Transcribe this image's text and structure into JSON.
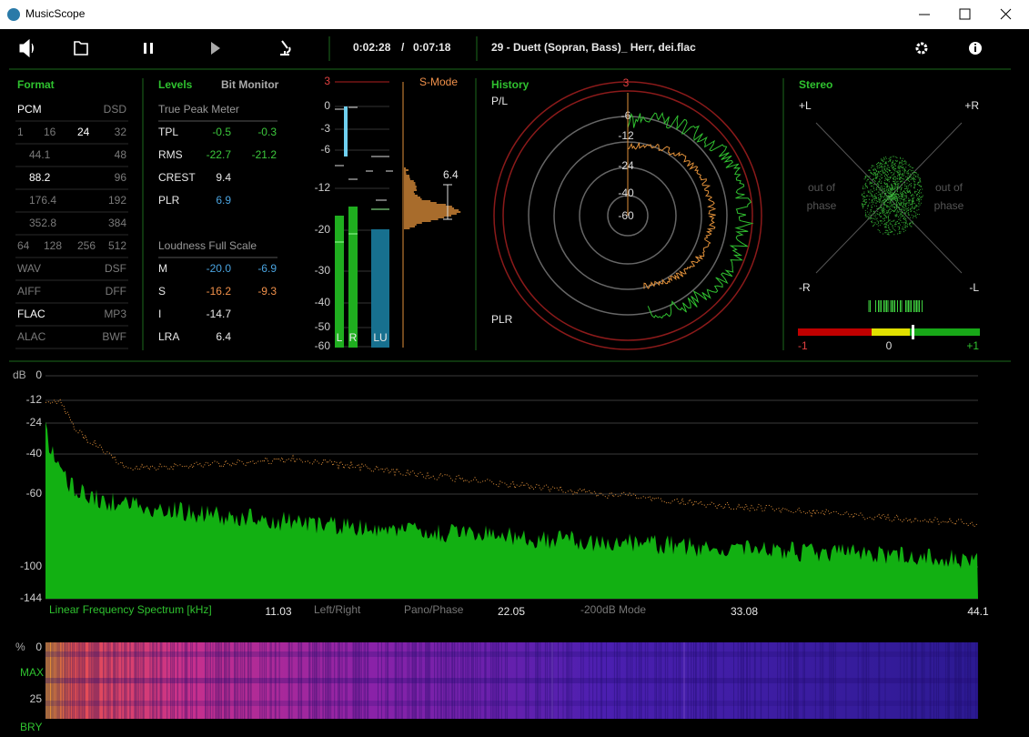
{
  "window": {
    "title": "MusicScope"
  },
  "toolbar": {
    "time_current": "0:02:28",
    "time_separator": "/",
    "time_total": "0:07:18",
    "track": "29 - Duett (Sopran, Bass)_ Herr, dei.flac"
  },
  "format": {
    "title": "Format",
    "rows": [
      [
        {
          "label": "PCM",
          "active": true
        },
        {
          "label": "DSD",
          "active": false
        }
      ],
      [
        {
          "label": "1",
          "active": false
        },
        {
          "label": "16",
          "active": false
        },
        {
          "label": "24",
          "active": true
        },
        {
          "label": "32",
          "active": false
        }
      ],
      [
        {
          "label": "44.1",
          "active": false
        },
        {
          "label": "48",
          "active": false
        }
      ],
      [
        {
          "label": "88.2",
          "active": true
        },
        {
          "label": "96",
          "active": false
        }
      ],
      [
        {
          "label": "176.4",
          "active": false
        },
        {
          "label": "192",
          "active": false
        }
      ],
      [
        {
          "label": "352.8",
          "active": false
        },
        {
          "label": "384",
          "active": false
        }
      ],
      [
        {
          "label": "64",
          "active": false
        },
        {
          "label": "128",
          "active": false
        },
        {
          "label": "256",
          "active": false
        },
        {
          "label": "512",
          "active": false
        }
      ],
      [
        {
          "label": "WAV",
          "active": false
        },
        {
          "label": "DSF",
          "active": false
        }
      ],
      [
        {
          "label": "AIFF",
          "active": false
        },
        {
          "label": "DFF",
          "active": false
        }
      ],
      [
        {
          "label": "FLAC",
          "active": true
        },
        {
          "label": "MP3",
          "active": false
        }
      ],
      [
        {
          "label": "ALAC",
          "active": false
        },
        {
          "label": "BWF",
          "active": false
        }
      ]
    ]
  },
  "levels": {
    "tabs": [
      {
        "label": "Levels",
        "active": true
      },
      {
        "label": "Bit Monitor",
        "active": false
      }
    ],
    "true_peak": {
      "title": "True Peak Meter",
      "rows": [
        {
          "label": "TPL",
          "values": [
            "-0.5",
            "-0.3"
          ],
          "color": "#3cc83c"
        },
        {
          "label": "RMS",
          "values": [
            "-22.7",
            "-21.2"
          ],
          "color": "#3cc83c"
        },
        {
          "label": "CREST",
          "values": [
            "9.4"
          ],
          "color": "#e8e8e8"
        },
        {
          "label": "PLR",
          "values": [
            "6.9"
          ],
          "color": "#4aa3df"
        }
      ]
    },
    "loudness": {
      "title": "Loudness Full Scale",
      "rows": [
        {
          "label": "M",
          "values": [
            "-20.0",
            "-6.9"
          ],
          "color": "#4aa3df"
        },
        {
          "label": "S",
          "values": [
            "-16.2",
            "-9.3"
          ],
          "color": "#f0904a"
        },
        {
          "label": "I",
          "values": [
            "-14.7"
          ],
          "color": "#e8e8e8"
        },
        {
          "label": "LRA",
          "values": [
            "6.4"
          ],
          "color": "#e8e8e8"
        }
      ]
    }
  },
  "meter": {
    "scale": [
      "3",
      "0",
      "-3",
      "-6",
      "-12",
      "-20",
      "-30",
      "-40",
      "-50",
      "-60"
    ],
    "channels": [
      "L",
      "R",
      "LU"
    ],
    "mode": "S-Mode",
    "lra": "6.4"
  },
  "history": {
    "title": "History",
    "top_label": "P/L",
    "bottom_label": "PLR",
    "rings": [
      "3",
      "-6",
      "-12",
      "-24",
      "-40",
      "-60"
    ]
  },
  "stereo": {
    "title": "Stereo",
    "corners": [
      "+L",
      "+R",
      "-R",
      "-L"
    ],
    "notes": [
      [
        "out of",
        "phase"
      ],
      [
        "out of",
        "phase"
      ]
    ],
    "scale": [
      "-1",
      "0",
      "+1"
    ]
  },
  "spectrum": {
    "unit": "dB",
    "yticks": [
      "0",
      "-12",
      "-24",
      "-40",
      "-60",
      "-100",
      "-144"
    ],
    "caption": "Linear Frequency Spectrum [kHz]",
    "xticks": [
      "11.03",
      "22.05",
      "33.08",
      "44.1"
    ],
    "modes": [
      "Left/Right",
      "Pano/Phase",
      "-200dB Mode"
    ]
  },
  "spectrogram": {
    "unit": "%",
    "ticks": [
      "0",
      "MAX",
      "25"
    ],
    "palette": "BRY"
  }
}
